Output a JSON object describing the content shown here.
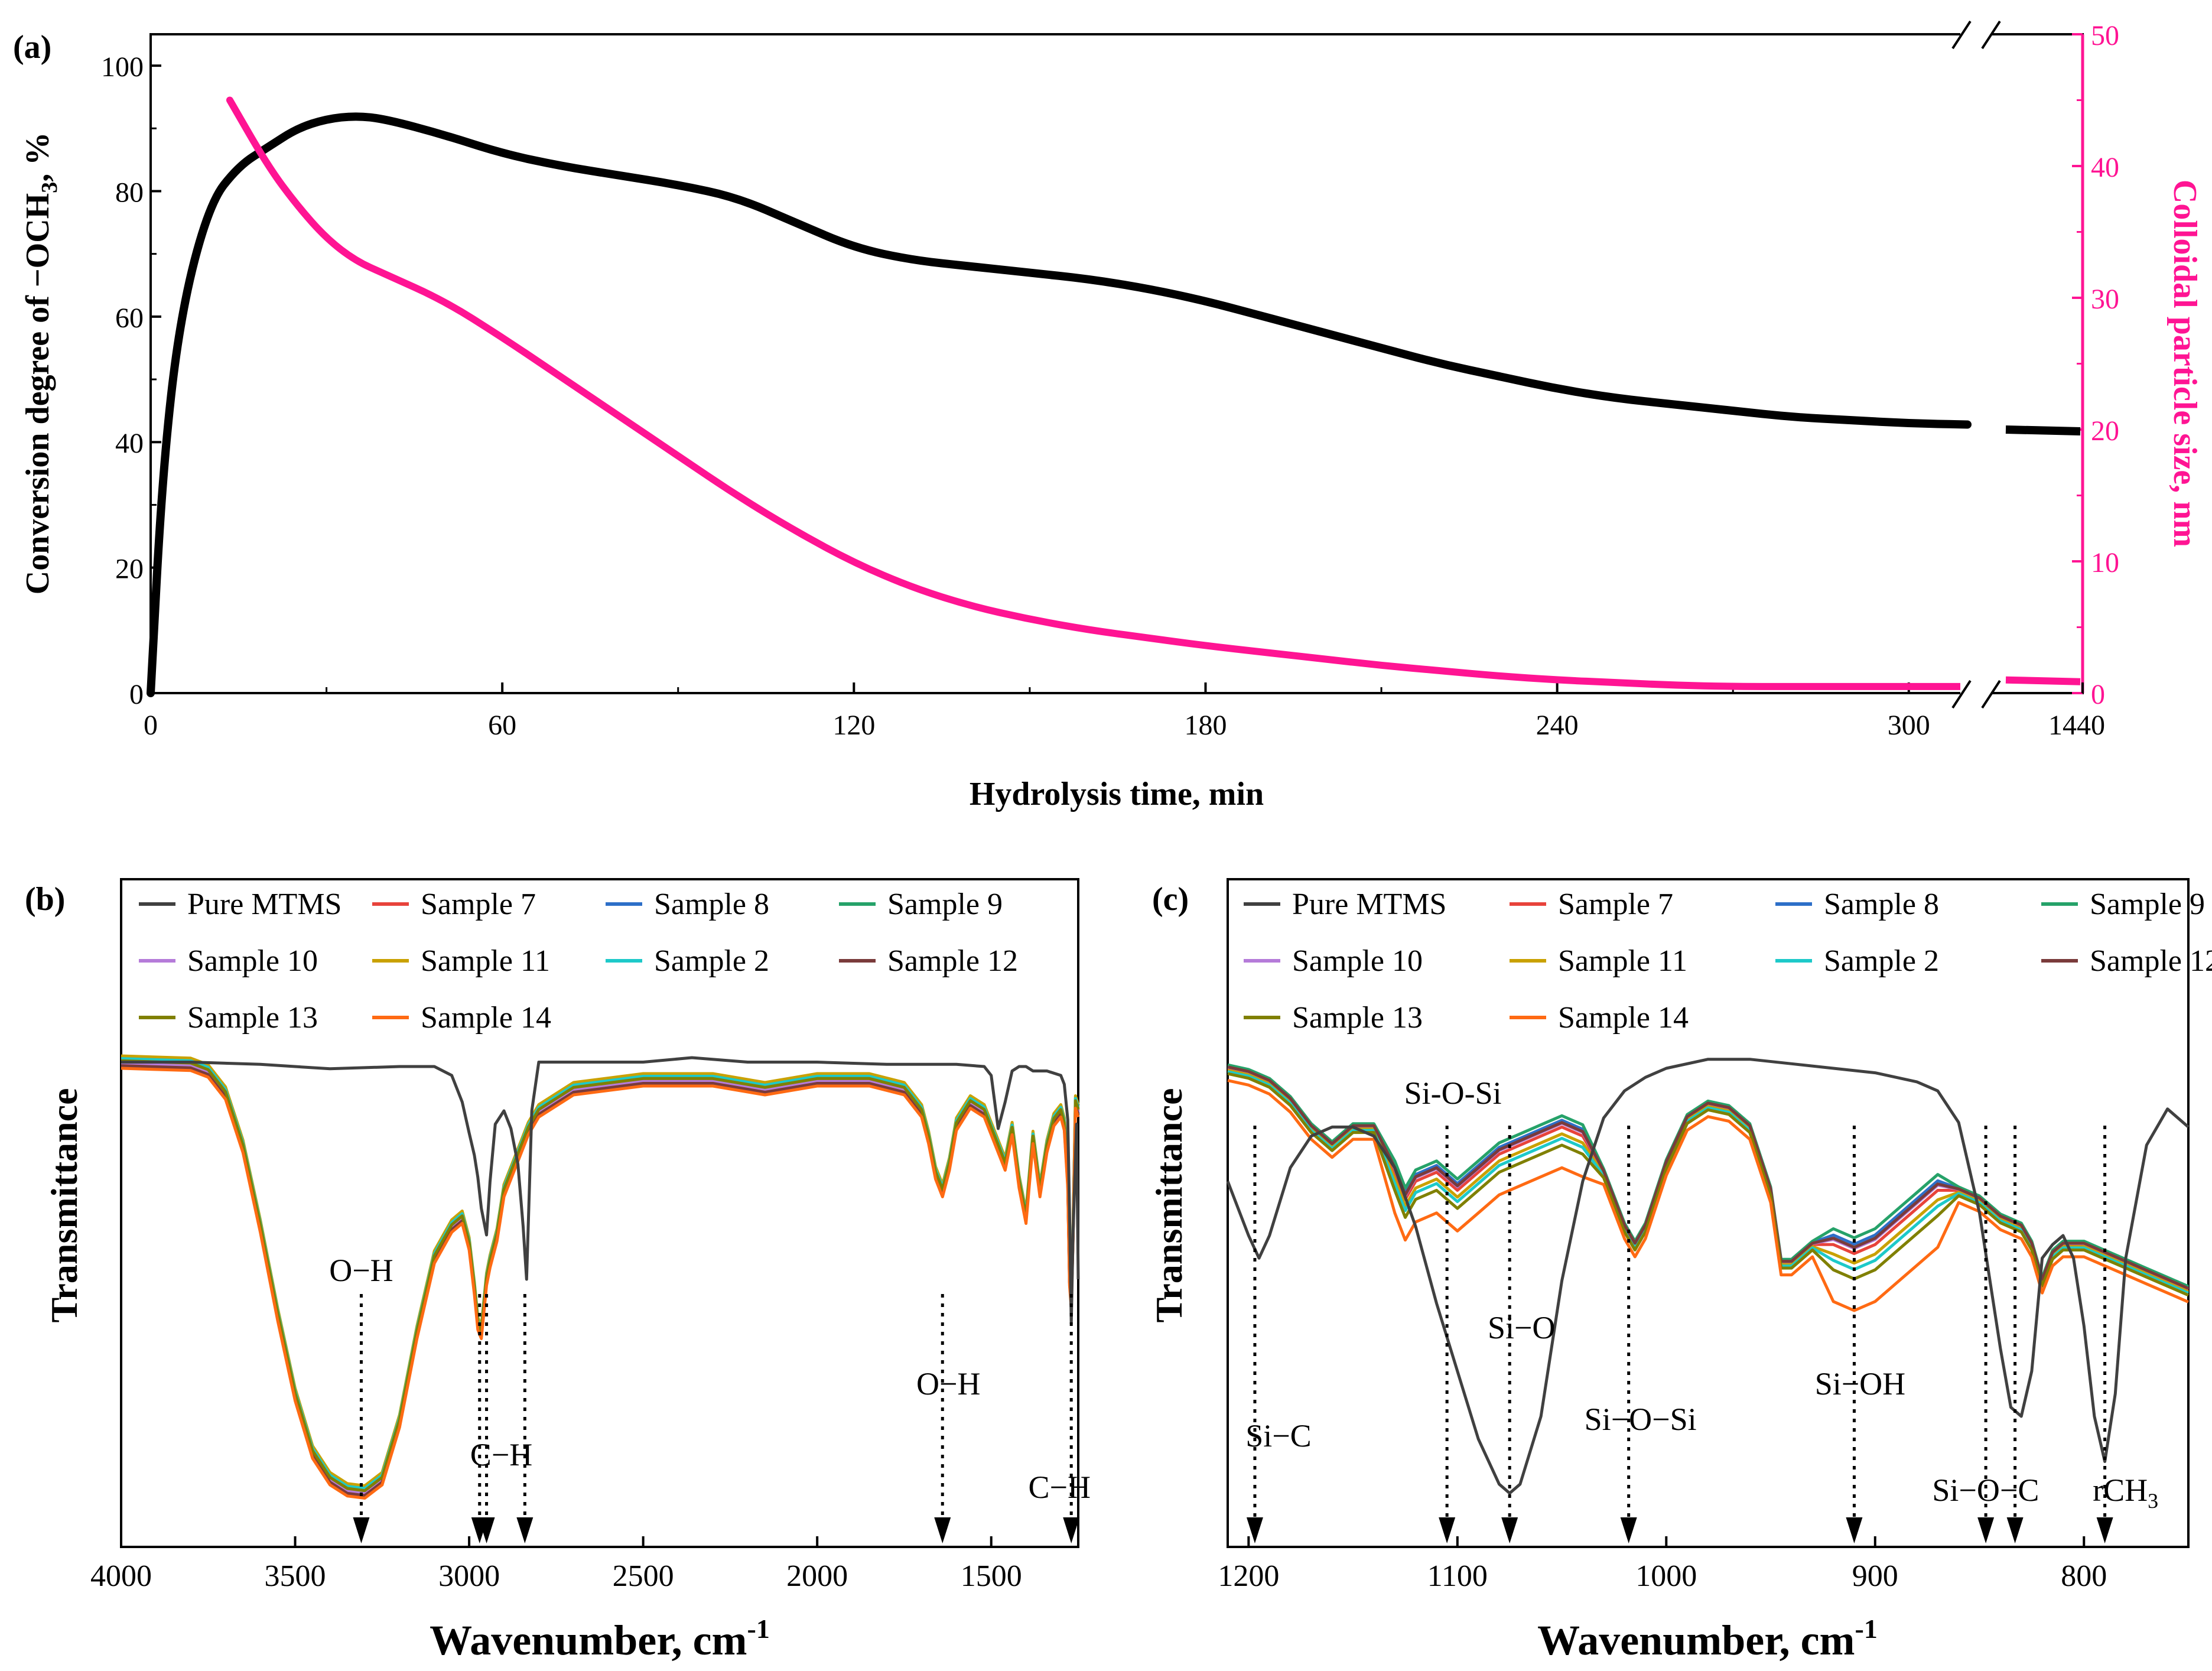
{
  "chart_data": [
    {
      "panel_label": "(a)",
      "type": "line",
      "xlabel": "Hydrolysis time, min",
      "ylabel": "Conversion degree of −OCH",
      "ylabel_sub": "3",
      "ylabel_tail": ", %",
      "ylabel_right": "Colloidal particle size, nm",
      "xticks": [
        "0",
        "60",
        "120",
        "180",
        "240",
        "300",
        "1440"
      ],
      "yticks_left": [
        "0",
        "20",
        "40",
        "60",
        "80",
        "100"
      ],
      "yticks_right": [
        "0",
        "10",
        "20",
        "30",
        "40",
        "50"
      ],
      "xlim": [
        0,
        330
      ],
      "ylim_left": [
        0,
        105
      ],
      "ylim_right": [
        0,
        50
      ],
      "axis_break": "between 300 and 1440",
      "series": [
        {
          "name": "Conversion degree",
          "color": "#000000",
          "axis": "left",
          "x": [
            0,
            2,
            5,
            10,
            15,
            20,
            25,
            30,
            35,
            40,
            50,
            60,
            70,
            80,
            90,
            100,
            110,
            120,
            130,
            140,
            150,
            160,
            170,
            180,
            190,
            200,
            210,
            220,
            230,
            240,
            250,
            260,
            270,
            280,
            290,
            300,
            310
          ],
          "y": [
            0,
            35,
            60,
            78,
            84,
            87,
            90,
            91.5,
            92,
            91.5,
            89,
            86,
            84,
            82.5,
            81,
            79,
            75,
            71,
            69,
            68,
            67,
            66,
            64.5,
            62.5,
            60,
            57.5,
            55,
            52.5,
            50.5,
            48.5,
            47,
            46,
            45,
            44,
            43.5,
            43,
            42.8
          ],
          "after_break": {
            "x": "1440",
            "y": 42
          }
        },
        {
          "name": "Colloidal particle size",
          "color": "#ff1493",
          "axis": "right",
          "x": [
            13.5,
            20,
            25,
            30,
            35,
            40,
            50,
            60,
            70,
            80,
            90,
            100,
            110,
            120,
            130,
            140,
            150,
            160,
            170,
            180,
            190,
            200,
            210,
            220,
            230,
            240,
            250,
            260,
            270,
            280,
            290,
            300,
            310
          ],
          "y": [
            45,
            40,
            37,
            34.5,
            32.8,
            31.8,
            29.8,
            27,
            24,
            21,
            18,
            15,
            12.3,
            9.9,
            8,
            6.6,
            5.6,
            4.8,
            4.2,
            3.6,
            3.1,
            2.6,
            2.1,
            1.7,
            1.3,
            1,
            0.8,
            0.6,
            0.5,
            0.5,
            0.5,
            0.5,
            0.5
          ],
          "after_break": {
            "x": "1440",
            "y": 1
          }
        }
      ]
    },
    {
      "panel_label": "(b)",
      "type": "line",
      "xlabel": "Wavenumber, cm",
      "xlabel_sup": "-1",
      "ylabel": "Transmittance",
      "xticks": [
        4000,
        3500,
        3000,
        2500,
        2000,
        1500
      ],
      "xlim": [
        4000,
        1250
      ],
      "legend_placement": "top",
      "legend": [
        {
          "name": "Pure MTMS",
          "color": "#404040"
        },
        {
          "name": "Sample 7",
          "color": "#e8433b"
        },
        {
          "name": "Sample 8",
          "color": "#2d6fc8"
        },
        {
          "name": "Sample 9",
          "color": "#26a269"
        },
        {
          "name": "Sample 10",
          "color": "#b57bd9"
        },
        {
          "name": "Sample 11",
          "color": "#c9a100"
        },
        {
          "name": "Sample 2",
          "color": "#1dc9c9"
        },
        {
          "name": "Sample 12",
          "color": "#7a3b3b"
        },
        {
          "name": "Sample 13",
          "color": "#808000"
        },
        {
          "name": "Sample 14",
          "color": "#ff6a13"
        }
      ],
      "annotations": [
        {
          "text": "O−H",
          "x": 3310
        },
        {
          "text": "C−H",
          "x": 2950
        },
        {
          "text": "O−H",
          "x": 1640
        },
        {
          "text": "C−H",
          "x": 1270
        }
      ],
      "arrow_positions": [
        3310,
        2970,
        2950,
        2840,
        1640,
        1270
      ],
      "pure_mtms": {
        "x": [
          4000,
          3800,
          3600,
          3400,
          3200,
          3100,
          3050,
          3020,
          3000,
          2985,
          2975,
          2965,
          2950,
          2940,
          2925,
          2900,
          2880,
          2860,
          2845,
          2835,
          2820,
          2800,
          2700,
          2500,
          2360,
          2200,
          2000,
          1800,
          1600,
          1520,
          1500,
          1480,
          1460,
          1440,
          1420,
          1400,
          1380,
          1340,
          1300,
          1290,
          1280,
          1275,
          1270,
          1265,
          1255,
          1250
        ],
        "y": [
          99,
          99,
          98.5,
          97.5,
          98,
          98,
          96,
          90,
          83,
          78,
          73,
          66,
          60,
          72,
          85,
          88,
          84,
          76,
          62,
          50,
          88,
          99,
          99,
          99,
          100,
          99,
          99,
          98.5,
          98.5,
          98,
          96,
          84,
          90,
          97,
          98,
          98,
          97,
          97,
          96,
          94,
          86,
          65,
          40,
          60,
          85,
          50
        ]
      },
      "sample_spectrum": {
        "x": [
          4000,
          3800,
          3750,
          3700,
          3650,
          3600,
          3550,
          3500,
          3450,
          3400,
          3350,
          3300,
          3250,
          3200,
          3150,
          3100,
          3050,
          3020,
          3000,
          2985,
          2975,
          2965,
          2950,
          2940,
          2920,
          2900,
          2870,
          2850,
          2830,
          2800,
          2700,
          2500,
          2300,
          2150,
          2000,
          1850,
          1750,
          1700,
          1680,
          1660,
          1640,
          1620,
          1600,
          1560,
          1520,
          1500,
          1480,
          1460,
          1440,
          1420,
          1400,
          1380,
          1360,
          1340,
          1320,
          1300,
          1290,
          1280,
          1275,
          1270,
          1265,
          1258,
          1250
        ],
        "y": [
          99,
          98.5,
          97,
          92,
          80,
          62,
          42,
          24,
          11,
          5,
          2.5,
          2,
          5,
          18,
          38,
          55,
          62,
          64,
          58,
          48,
          40,
          38,
          50,
          54,
          60,
          70,
          76,
          80,
          84,
          88,
          93,
          95,
          95,
          93,
          95,
          95,
          93,
          88,
          82,
          74,
          70,
          76,
          85,
          90,
          88,
          84,
          80,
          76,
          84,
          72,
          64,
          82,
          70,
          80,
          86,
          88,
          85,
          72,
          50,
          45,
          60,
          90,
          88
        ]
      }
    },
    {
      "panel_label": "(c)",
      "type": "line",
      "xlabel": "Wavenumber, cm",
      "xlabel_sup": "-1",
      "ylabel": "Transmittance",
      "xticks": [
        1200,
        1100,
        1000,
        900,
        800
      ],
      "xlim": [
        1210,
        750
      ],
      "legend_placement": "top",
      "legend": [
        {
          "name": "Pure MTMS",
          "color": "#404040"
        },
        {
          "name": "Sample 7",
          "color": "#e8433b"
        },
        {
          "name": "Sample 8",
          "color": "#2d6fc8"
        },
        {
          "name": "Sample 9",
          "color": "#26a269"
        },
        {
          "name": "Sample 10",
          "color": "#b57bd9"
        },
        {
          "name": "Sample 11",
          "color": "#c9a100"
        },
        {
          "name": "Sample 2",
          "color": "#1dc9c9"
        },
        {
          "name": "Sample 12",
          "color": "#7a3b3b"
        },
        {
          "name": "Sample 13",
          "color": "#808000"
        },
        {
          "name": "Sample 14",
          "color": "#ff6a13"
        }
      ],
      "annotations": [
        {
          "text": "Si−C",
          "x": 1197
        },
        {
          "text": "Si-O-Si",
          "x": 1105
        },
        {
          "text": "Si−O",
          "x": 1075
        },
        {
          "text": "Si−O−Si",
          "x": 1018
        },
        {
          "text": "Si−OH",
          "x": 910
        },
        {
          "text": "Si−O−C",
          "x": 840
        },
        {
          "text": "rCH",
          "x": 790,
          "sub": "3"
        }
      ],
      "arrow_positions": [
        1197,
        1105,
        1075,
        1018,
        910,
        847,
        833,
        790
      ],
      "pure_mtms": {
        "x": [
          1210,
          1200,
          1195,
          1190,
          1180,
          1170,
          1160,
          1150,
          1140,
          1130,
          1120,
          1110,
          1100,
          1090,
          1080,
          1075,
          1070,
          1060,
          1050,
          1040,
          1030,
          1020,
          1010,
          1000,
          980,
          960,
          940,
          920,
          900,
          880,
          870,
          860,
          850,
          840,
          835,
          830,
          825,
          820,
          815,
          810,
          805,
          800,
          795,
          790,
          785,
          780,
          770,
          760,
          750
        ],
        "y": [
          72,
          60,
          55,
          60,
          75,
          82,
          84,
          84,
          82,
          75,
          62,
          45,
          30,
          15,
          5,
          3,
          5,
          20,
          50,
          72,
          86,
          92,
          95,
          97,
          99,
          99,
          98,
          97,
          96,
          94,
          92,
          85,
          65,
          35,
          22,
          20,
          30,
          55,
          58,
          60,
          55,
          40,
          20,
          10,
          25,
          55,
          80,
          88,
          84
        ]
      },
      "sample_spectrum": {
        "x": [
          1210,
          1200,
          1190,
          1180,
          1170,
          1160,
          1150,
          1140,
          1130,
          1125,
          1120,
          1110,
          1100,
          1090,
          1080,
          1070,
          1060,
          1050,
          1040,
          1030,
          1020,
          1015,
          1010,
          1000,
          990,
          980,
          970,
          960,
          950,
          945,
          940,
          930,
          920,
          910,
          900,
          890,
          880,
          870,
          860,
          850,
          840,
          830,
          825,
          820,
          815,
          810,
          800,
          790,
          780,
          770,
          760,
          750
        ],
        "y": [
          97,
          96,
          94,
          90,
          84,
          80,
          84,
          84,
          74,
          68,
          72,
          74,
          70,
          74,
          78,
          80,
          82,
          84,
          82,
          74,
          62,
          58,
          62,
          76,
          86,
          89,
          88,
          84,
          70,
          54,
          54,
          58,
          58,
          56,
          58,
          62,
          66,
          70,
          70,
          68,
          64,
          62,
          58,
          50,
          56,
          58,
          58,
          56,
          54,
          52,
          50,
          48
        ]
      }
    }
  ]
}
